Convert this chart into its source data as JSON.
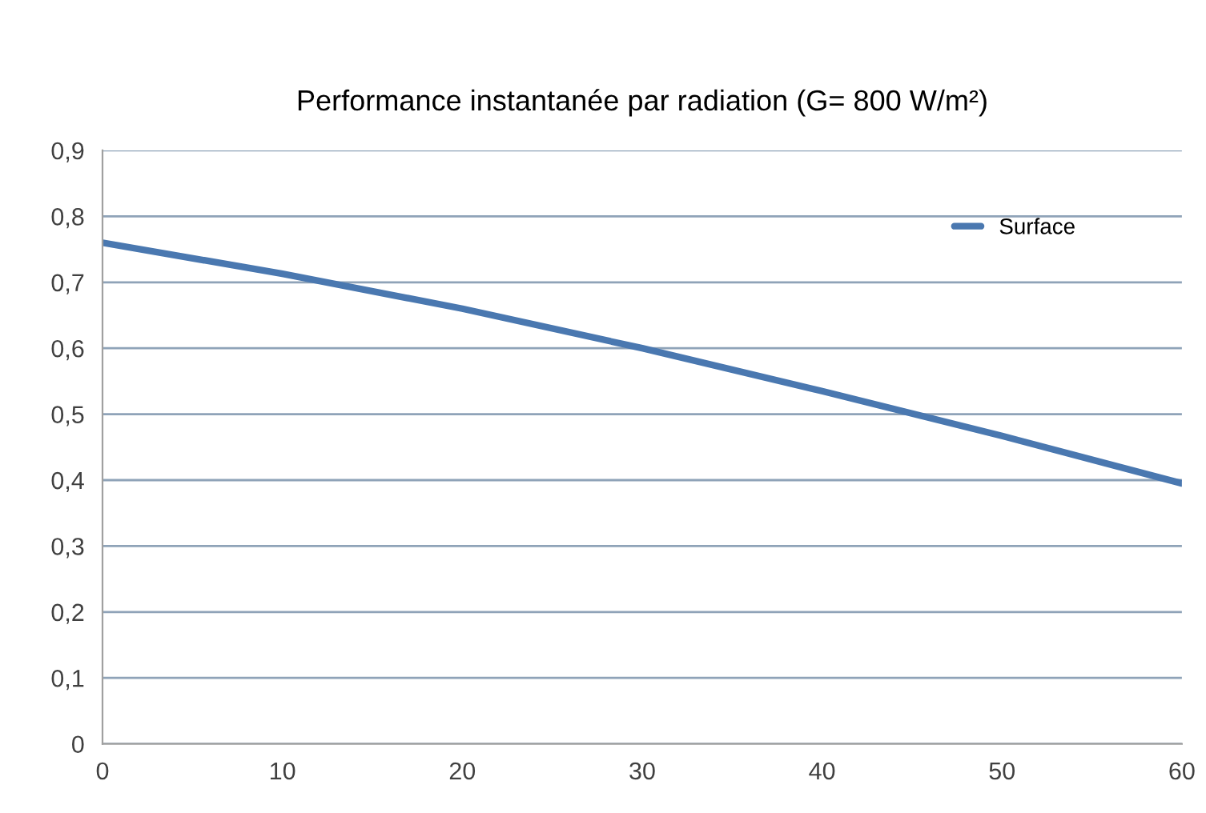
{
  "chart_data": {
    "type": "line",
    "title": "Performance instantanée par radiation (G= 800 W/m²)",
    "x": [
      0,
      10,
      20,
      30,
      40,
      50,
      60
    ],
    "series": [
      {
        "name": "Surface",
        "color": "#4a78b0",
        "values": [
          0.76,
          0.713,
          0.66,
          0.6,
          0.535,
          0.467,
          0.395
        ]
      }
    ],
    "xlim": [
      0,
      60
    ],
    "xticks": [
      0,
      10,
      20,
      30,
      40,
      50,
      60
    ],
    "ylim": [
      0,
      0.9
    ],
    "yticks": [
      0,
      {
        "value": 0.1,
        "label": "0,1"
      },
      {
        "value": 0.2,
        "label": "0,2"
      },
      {
        "value": 0.3,
        "label": "0,3"
      },
      {
        "value": 0.4,
        "label": "0,4"
      },
      {
        "value": 0.5,
        "label": "0,5"
      },
      {
        "value": 0.6,
        "label": "0,6"
      },
      {
        "value": 0.7,
        "label": "0,7"
      },
      {
        "value": 0.8,
        "label": "0,8"
      },
      {
        "value": 0.9,
        "label": "0,9"
      }
    ],
    "grid": "y",
    "legend": "top right",
    "line_style": "solid",
    "marker": "none"
  }
}
